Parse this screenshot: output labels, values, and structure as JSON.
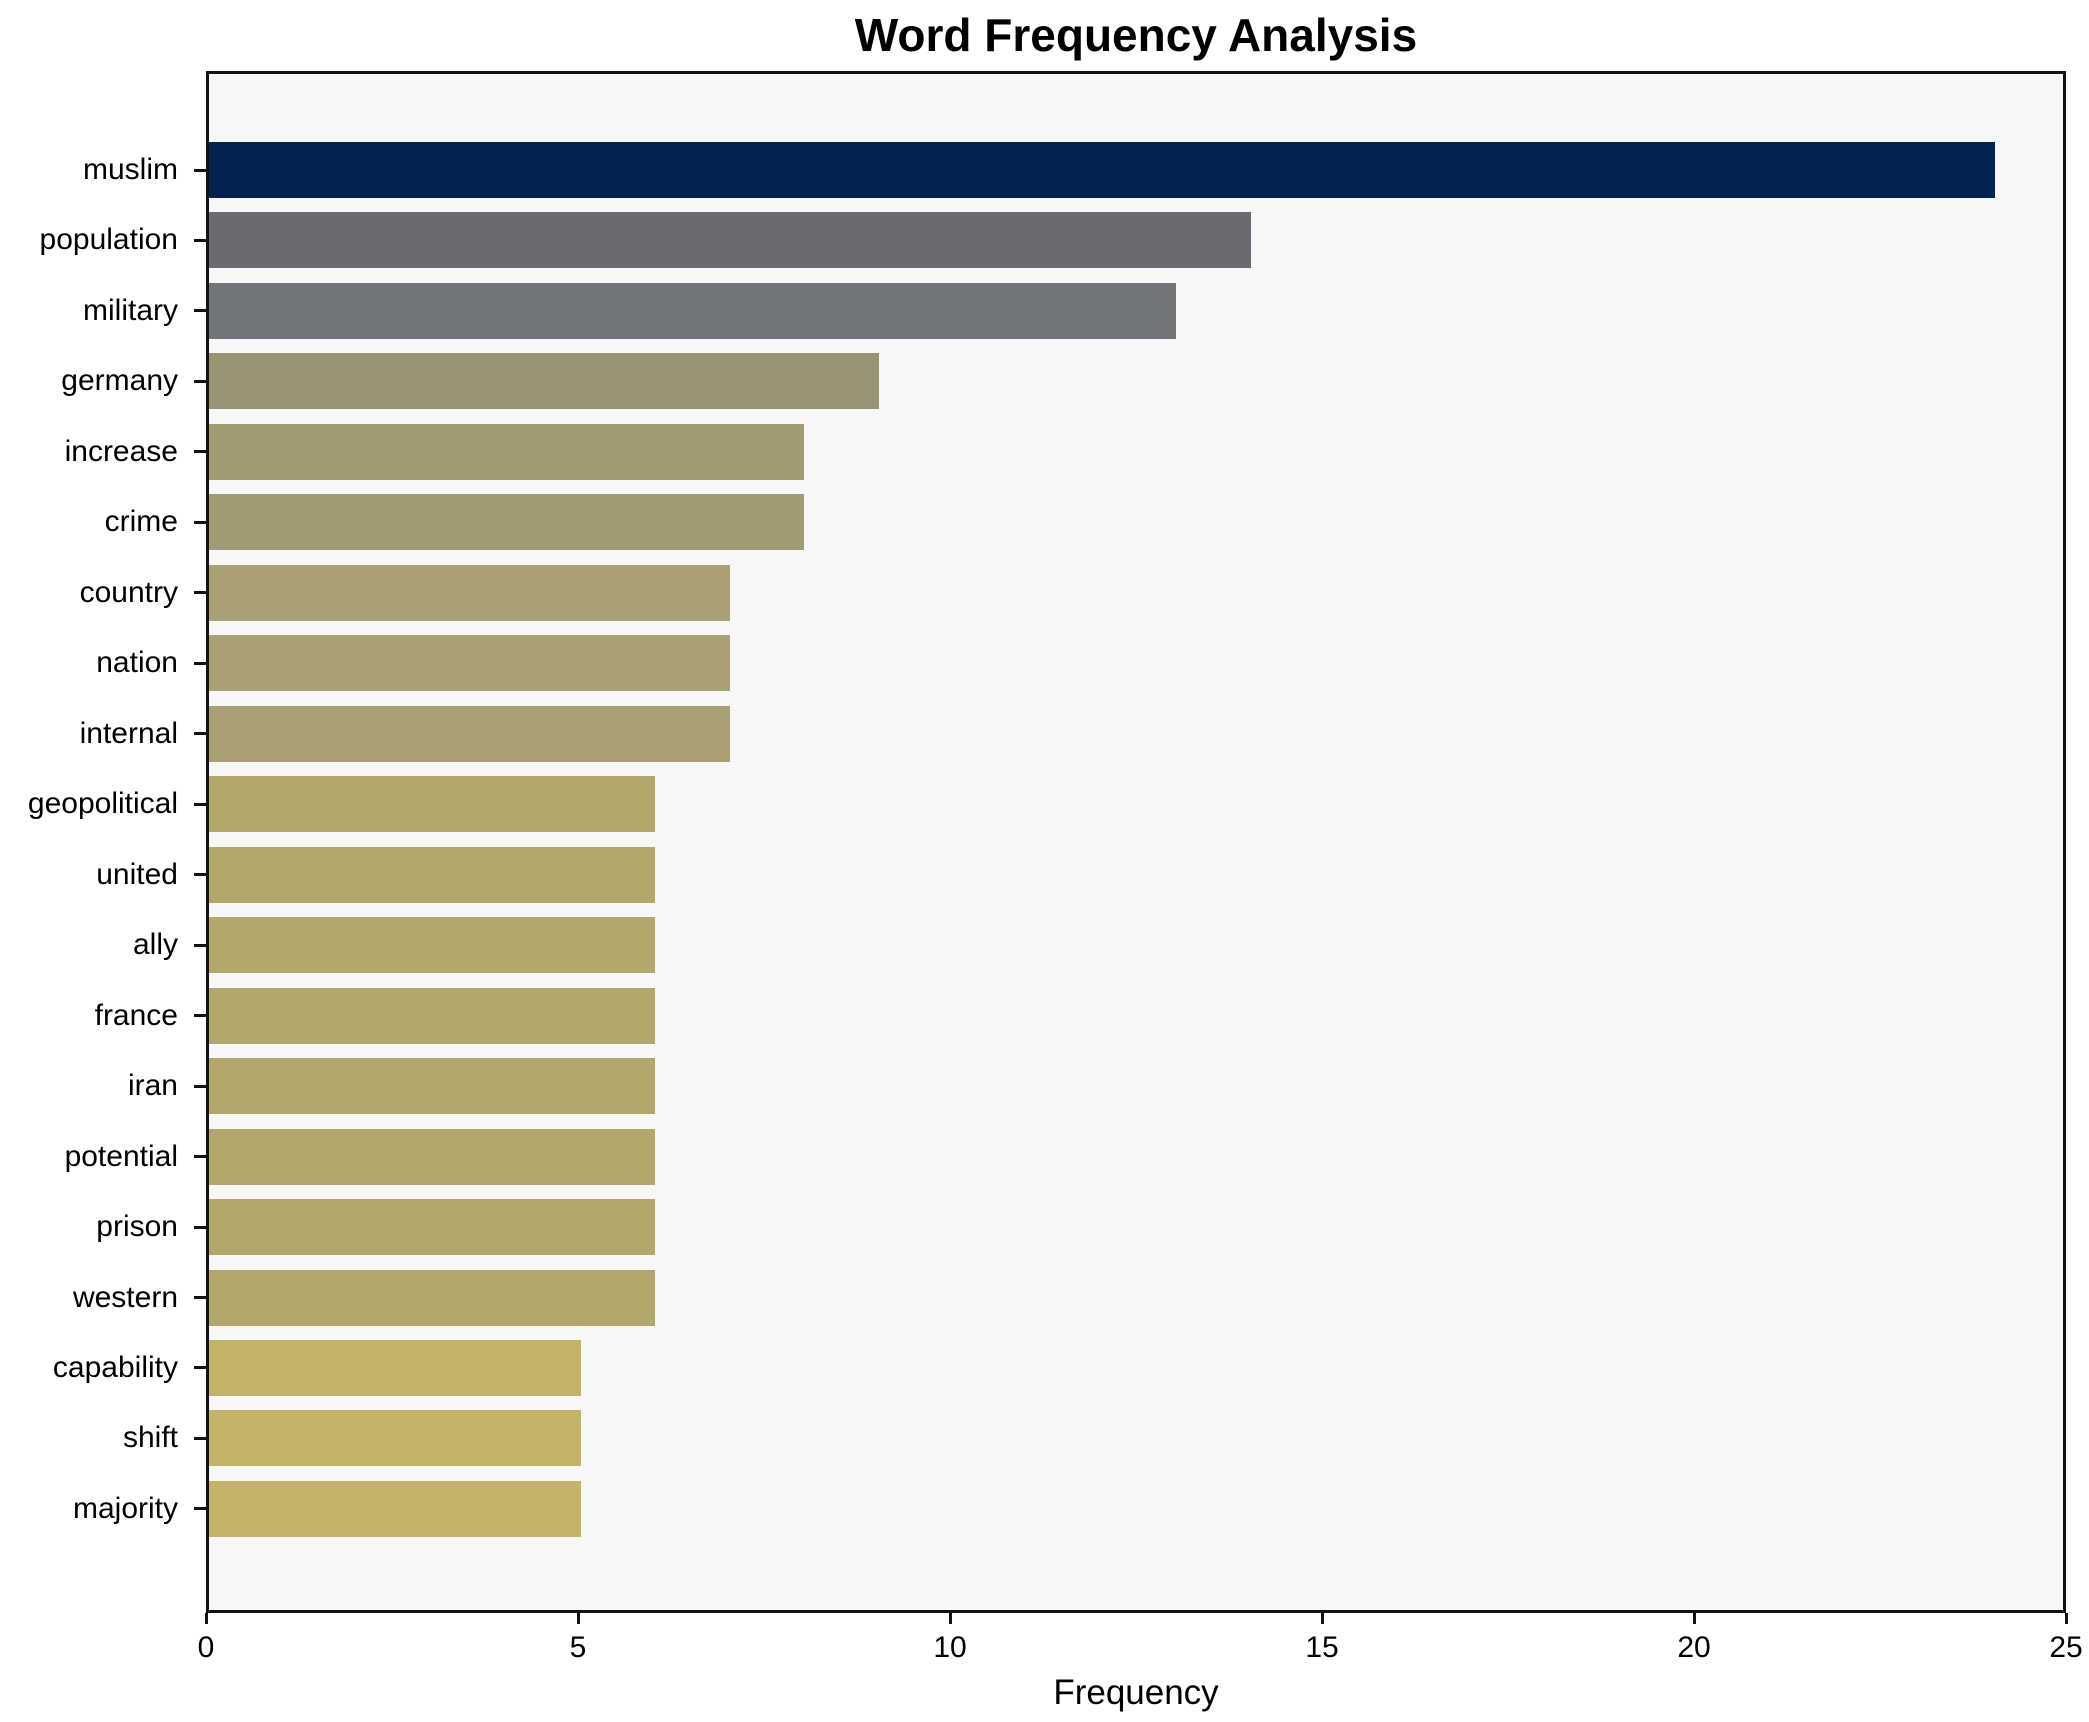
{
  "chart_data": {
    "type": "bar",
    "orientation": "horizontal",
    "title": "Word Frequency Analysis",
    "xlabel": "Frequency",
    "ylabel": "",
    "xlim": [
      0,
      25
    ],
    "x_ticks": [
      0,
      5,
      10,
      15,
      20,
      25
    ],
    "grid": false,
    "legend_position": "none",
    "categories": [
      "muslim",
      "population",
      "military",
      "germany",
      "increase",
      "crime",
      "country",
      "nation",
      "internal",
      "geopolitical",
      "united",
      "ally",
      "france",
      "iran",
      "potential",
      "prison",
      "western",
      "capability",
      "shift",
      "majority"
    ],
    "values": [
      24,
      14,
      13,
      9,
      8,
      8,
      7,
      7,
      7,
      6,
      6,
      6,
      6,
      6,
      6,
      6,
      6,
      5,
      5,
      5
    ],
    "bar_colors": [
      "#02234d",
      "#696b70",
      "#717478",
      "#9a9274",
      "#a29a73",
      "#a29a73",
      "#a9a073",
      "#a9a073",
      "#a9a073",
      "#b2a86d",
      "#b2a86d",
      "#b2a86d",
      "#b2a86d",
      "#b2a86d",
      "#b2a86d",
      "#b2a86d",
      "#b2a86d",
      "#c3b368",
      "#c3b368",
      "#c3b368"
    ]
  },
  "style": {
    "figure_bg": "#ffffff",
    "plot_bg": "#f7f7f7",
    "spine_color": "#121212",
    "text_color": "#000000"
  }
}
